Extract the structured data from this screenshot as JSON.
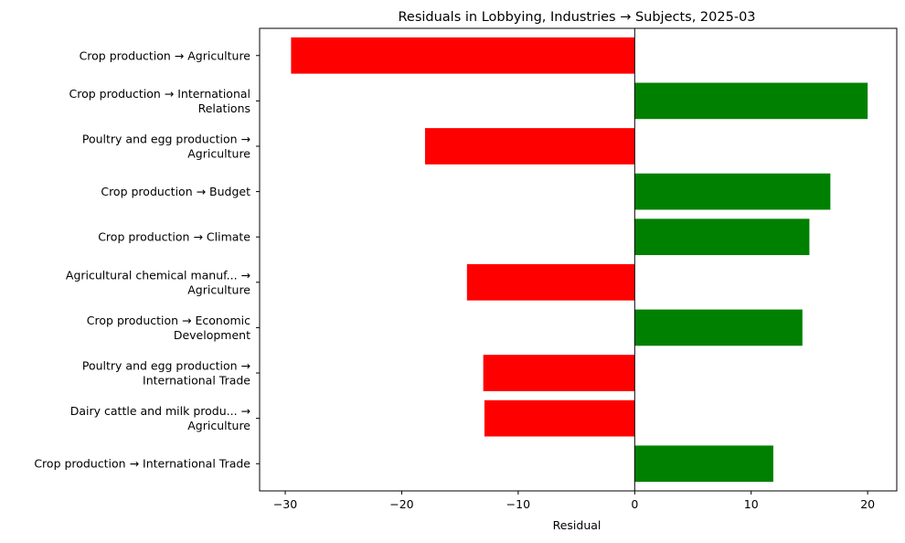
{
  "chart_data": {
    "type": "bar",
    "orientation": "horizontal",
    "title": "Residuals in Lobbying, Industries → Subjects, 2025-03",
    "xlabel": "Residual",
    "ylabel": "",
    "xlim": [
      -32.2,
      22.5
    ],
    "xticks": [
      -30,
      -20,
      -10,
      0,
      10,
      20
    ],
    "xtick_labels": [
      "−30",
      "−20",
      "−10",
      "0",
      "10",
      "20"
    ],
    "grid": false,
    "legend": "none",
    "positive_color": "#008000",
    "negative_color": "#ff0000",
    "categories": [
      [
        "Crop production → Agriculture"
      ],
      [
        "Crop production → International",
        "Relations"
      ],
      [
        "Poultry and egg production →",
        "Agriculture"
      ],
      [
        "Crop production → Budget"
      ],
      [
        "Crop production → Climate"
      ],
      [
        "Agricultural chemical manuf... →",
        "Agriculture"
      ],
      [
        "Crop production → Economic",
        "Development"
      ],
      [
        "Poultry and egg production →",
        "International Trade"
      ],
      [
        "Dairy cattle and milk produ... →",
        "Agriculture"
      ],
      [
        "Crop production → International Trade"
      ]
    ],
    "values": [
      -29.5,
      20.0,
      -18.0,
      16.8,
      15.0,
      -14.4,
      14.4,
      -13.0,
      -12.9,
      11.9
    ]
  }
}
